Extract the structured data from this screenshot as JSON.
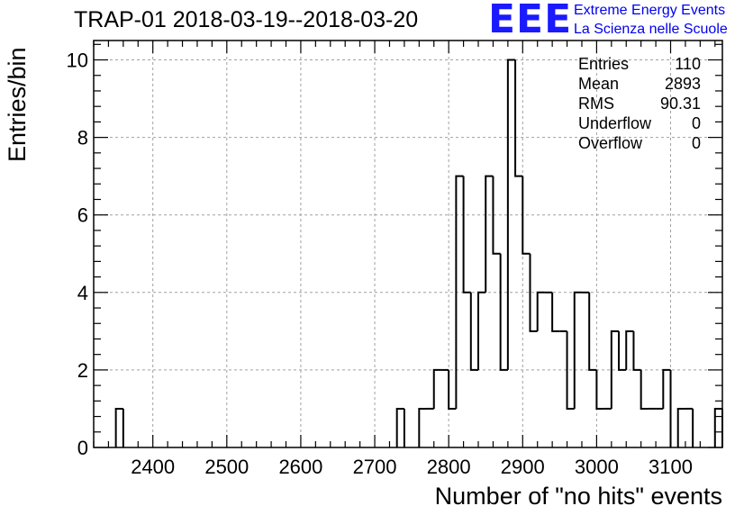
{
  "title": "TRAP-01 2018-03-19--2018-03-20",
  "logo": {
    "mark": "EEE",
    "line1": "Extreme Energy Events",
    "line2": "La Scienza nelle Scuole",
    "color": "#1a1aff"
  },
  "stats": [
    {
      "label": "Entries",
      "value": "110"
    },
    {
      "label": "Mean",
      "value": "2893"
    },
    {
      "label": "RMS",
      "value": "90.31"
    },
    {
      "label": "Underflow",
      "value": "0"
    },
    {
      "label": "Overflow",
      "value": "0"
    }
  ],
  "chart_data": {
    "type": "histogram",
    "xlabel": "Number of \"no hits\" events",
    "ylabel": "Entries/bin",
    "xlim": [
      2320,
      3170
    ],
    "ylim": [
      0,
      10.5
    ],
    "bin_width": 10,
    "xticks": [
      2400,
      2500,
      2600,
      2700,
      2800,
      2900,
      3000,
      3100
    ],
    "yticks": [
      0,
      2,
      4,
      6,
      8,
      10
    ],
    "grid": true,
    "line_color": "#000000",
    "bins": [
      {
        "x0": 2350,
        "x1": 2360,
        "count": 1
      },
      {
        "x0": 2730,
        "x1": 2740,
        "count": 1
      },
      {
        "x0": 2760,
        "x1": 2770,
        "count": 1
      },
      {
        "x0": 2770,
        "x1": 2780,
        "count": 1
      },
      {
        "x0": 2780,
        "x1": 2790,
        "count": 2
      },
      {
        "x0": 2790,
        "x1": 2800,
        "count": 2
      },
      {
        "x0": 2800,
        "x1": 2810,
        "count": 1
      },
      {
        "x0": 2810,
        "x1": 2820,
        "count": 7
      },
      {
        "x0": 2820,
        "x1": 2830,
        "count": 4
      },
      {
        "x0": 2830,
        "x1": 2840,
        "count": 2
      },
      {
        "x0": 2840,
        "x1": 2850,
        "count": 4
      },
      {
        "x0": 2850,
        "x1": 2860,
        "count": 7
      },
      {
        "x0": 2860,
        "x1": 2870,
        "count": 5
      },
      {
        "x0": 2870,
        "x1": 2880,
        "count": 2
      },
      {
        "x0": 2880,
        "x1": 2890,
        "count": 10
      },
      {
        "x0": 2890,
        "x1": 2900,
        "count": 7
      },
      {
        "x0": 2900,
        "x1": 2910,
        "count": 5
      },
      {
        "x0": 2910,
        "x1": 2920,
        "count": 3
      },
      {
        "x0": 2920,
        "x1": 2930,
        "count": 4
      },
      {
        "x0": 2930,
        "x1": 2940,
        "count": 4
      },
      {
        "x0": 2940,
        "x1": 2950,
        "count": 3
      },
      {
        "x0": 2950,
        "x1": 2960,
        "count": 3
      },
      {
        "x0": 2960,
        "x1": 2970,
        "count": 1
      },
      {
        "x0": 2970,
        "x1": 2980,
        "count": 4
      },
      {
        "x0": 2980,
        "x1": 2990,
        "count": 4
      },
      {
        "x0": 2990,
        "x1": 3000,
        "count": 2
      },
      {
        "x0": 3000,
        "x1": 3010,
        "count": 1
      },
      {
        "x0": 3010,
        "x1": 3020,
        "count": 1
      },
      {
        "x0": 3020,
        "x1": 3030,
        "count": 3
      },
      {
        "x0": 3030,
        "x1": 3040,
        "count": 2
      },
      {
        "x0": 3040,
        "x1": 3050,
        "count": 3
      },
      {
        "x0": 3050,
        "x1": 3060,
        "count": 2
      },
      {
        "x0": 3060,
        "x1": 3070,
        "count": 1
      },
      {
        "x0": 3070,
        "x1": 3080,
        "count": 1
      },
      {
        "x0": 3080,
        "x1": 3090,
        "count": 1
      },
      {
        "x0": 3090,
        "x1": 3100,
        "count": 2
      },
      {
        "x0": 3110,
        "x1": 3120,
        "count": 1
      },
      {
        "x0": 3120,
        "x1": 3130,
        "count": 1
      },
      {
        "x0": 3160,
        "x1": 3170,
        "count": 1
      }
    ]
  }
}
